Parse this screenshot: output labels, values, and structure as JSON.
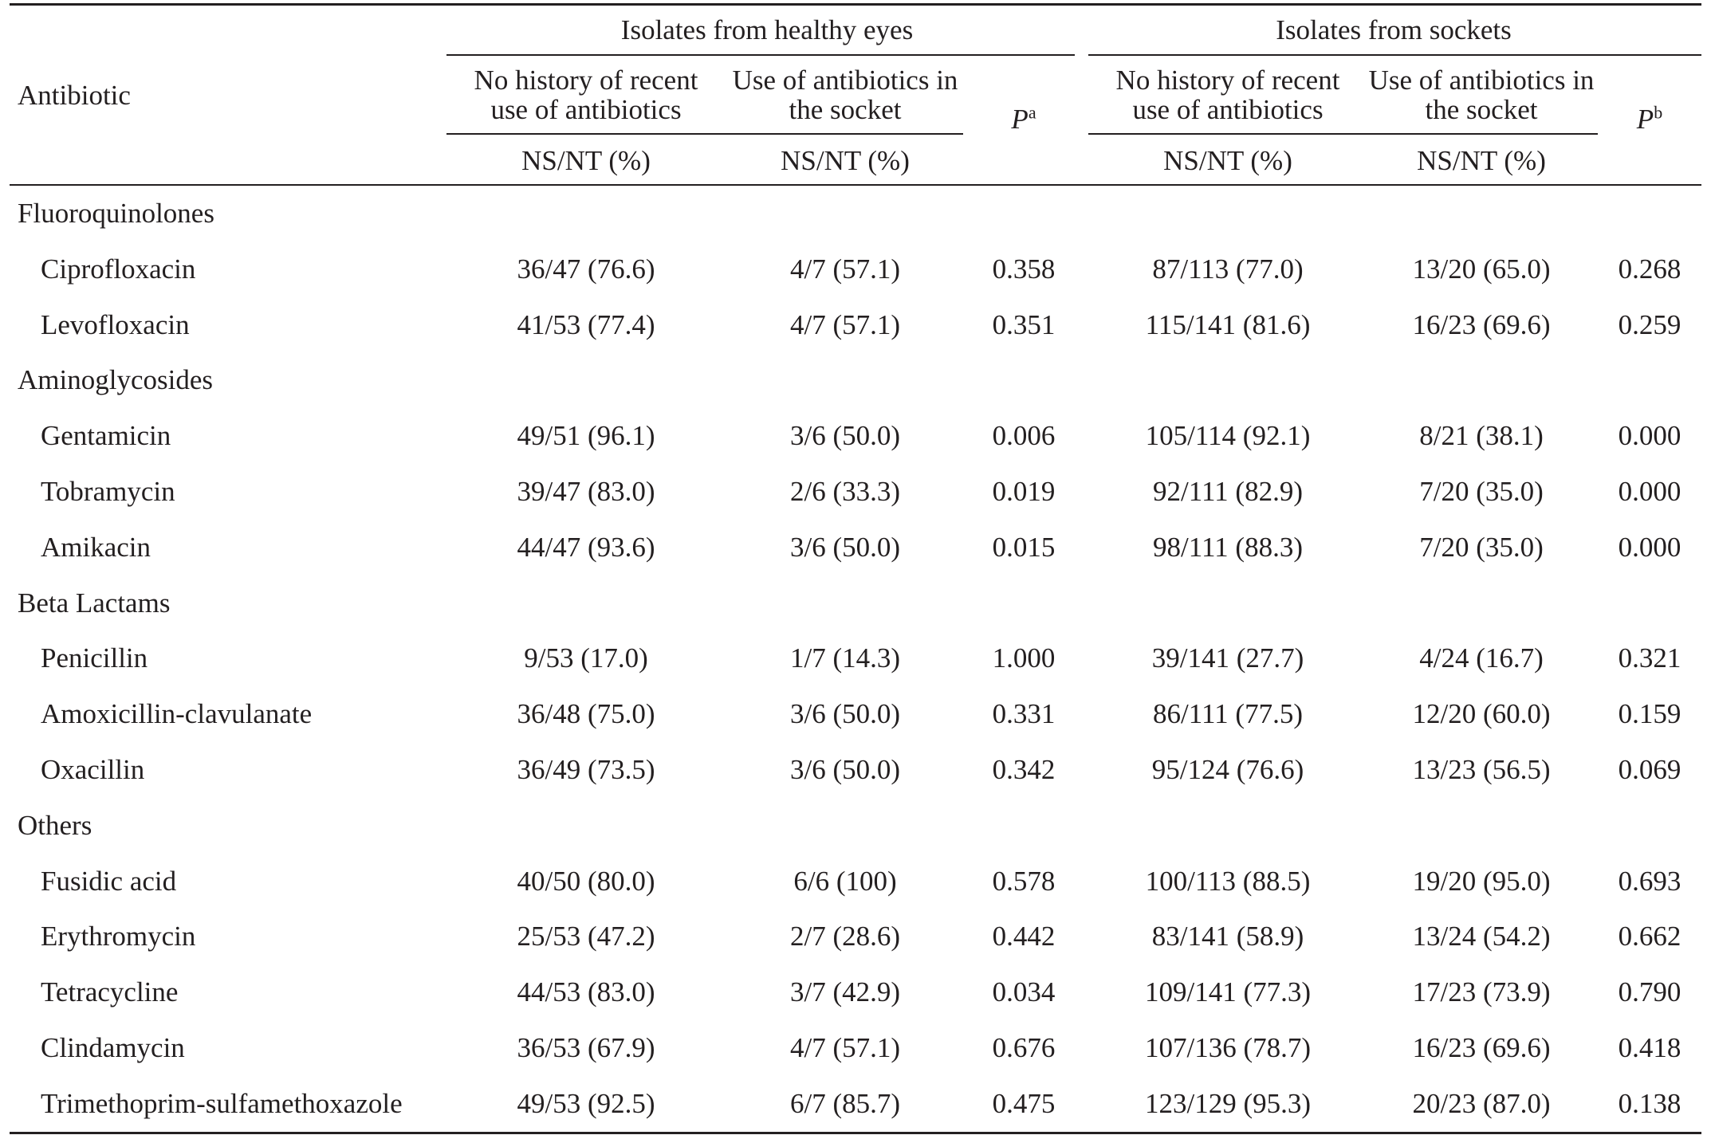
{
  "table": {
    "header": {
      "antibiotic_label": "Antibiotic",
      "group_healthy": "Isolates from healthy eyes",
      "group_sockets": "Isolates from sockets",
      "col_no_history": "No history of recent use of antibiotics",
      "col_use_socket": "Use of antibiotics in the socket",
      "col_ns_nt": "NS/NT (%)",
      "p_symbol": "P",
      "p_sup_a": "a",
      "p_sup_b": "b"
    },
    "sections": [
      {
        "name": "Fluoroquinolones",
        "rows": [
          {
            "antibiotic": "Ciprofloxacin",
            "healthy_no_history": "36/47 (76.6)",
            "healthy_use": "4/7 (57.1)",
            "p_a": "0.358",
            "sockets_no_history": "87/113 (77.0)",
            "sockets_use": "13/20 (65.0)",
            "p_b": "0.268"
          },
          {
            "antibiotic": "Levofloxacin",
            "healthy_no_history": "41/53 (77.4)",
            "healthy_use": "4/7 (57.1)",
            "p_a": "0.351",
            "sockets_no_history": "115/141 (81.6)",
            "sockets_use": "16/23 (69.6)",
            "p_b": "0.259"
          }
        ]
      },
      {
        "name": "Aminoglycosides",
        "rows": [
          {
            "antibiotic": "Gentamicin",
            "healthy_no_history": "49/51 (96.1)",
            "healthy_use": "3/6 (50.0)",
            "p_a": "0.006",
            "sockets_no_history": "105/114 (92.1)",
            "sockets_use": "8/21 (38.1)",
            "p_b": "0.000"
          },
          {
            "antibiotic": "Tobramycin",
            "healthy_no_history": "39/47 (83.0)",
            "healthy_use": "2/6 (33.3)",
            "p_a": "0.019",
            "sockets_no_history": "92/111 (82.9)",
            "sockets_use": "7/20 (35.0)",
            "p_b": "0.000"
          },
          {
            "antibiotic": "Amikacin",
            "healthy_no_history": "44/47 (93.6)",
            "healthy_use": "3/6 (50.0)",
            "p_a": "0.015",
            "sockets_no_history": "98/111 (88.3)",
            "sockets_use": "7/20 (35.0)",
            "p_b": "0.000"
          }
        ]
      },
      {
        "name": "Beta Lactams",
        "rows": [
          {
            "antibiotic": "Penicillin",
            "healthy_no_history": "9/53 (17.0)",
            "healthy_use": "1/7 (14.3)",
            "p_a": "1.000",
            "sockets_no_history": "39/141 (27.7)",
            "sockets_use": "4/24 (16.7)",
            "p_b": "0.321"
          },
          {
            "antibiotic": "Amoxicillin-clavulanate",
            "healthy_no_history": "36/48 (75.0)",
            "healthy_use": "3/6 (50.0)",
            "p_a": "0.331",
            "sockets_no_history": "86/111 (77.5)",
            "sockets_use": "12/20 (60.0)",
            "p_b": "0.159"
          },
          {
            "antibiotic": "Oxacillin",
            "healthy_no_history": "36/49 (73.5)",
            "healthy_use": "3/6 (50.0)",
            "p_a": "0.342",
            "sockets_no_history": "95/124 (76.6)",
            "sockets_use": "13/23 (56.5)",
            "p_b": "0.069"
          }
        ]
      },
      {
        "name": "Others",
        "rows": [
          {
            "antibiotic": "Fusidic acid",
            "healthy_no_history": "40/50 (80.0)",
            "healthy_use": "6/6 (100)",
            "p_a": "0.578",
            "sockets_no_history": "100/113 (88.5)",
            "sockets_use": "19/20 (95.0)",
            "p_b": "0.693"
          },
          {
            "antibiotic": "Erythromycin",
            "healthy_no_history": "25/53 (47.2)",
            "healthy_use": "2/7 (28.6)",
            "p_a": "0.442",
            "sockets_no_history": "83/141 (58.9)",
            "sockets_use": "13/24 (54.2)",
            "p_b": "0.662"
          },
          {
            "antibiotic": "Tetracycline",
            "healthy_no_history": "44/53 (83.0)",
            "healthy_use": "3/7 (42.9)",
            "p_a": "0.034",
            "sockets_no_history": "109/141 (77.3)",
            "sockets_use": "17/23 (73.9)",
            "p_b": "0.790"
          },
          {
            "antibiotic": "Clindamycin",
            "healthy_no_history": "36/53 (67.9)",
            "healthy_use": "4/7 (57.1)",
            "p_a": "0.676",
            "sockets_no_history": "107/136 (78.7)",
            "sockets_use": "16/23 (69.6)",
            "p_b": "0.418"
          },
          {
            "antibiotic": "Trimethoprim-sulfamethoxazole",
            "healthy_no_history": "49/53 (92.5)",
            "healthy_use": "6/7 (85.7)",
            "p_a": "0.475",
            "sockets_no_history": "123/129 (95.3)",
            "sockets_use": "20/23 (87.0)",
            "p_b": "0.138"
          }
        ]
      }
    ]
  }
}
